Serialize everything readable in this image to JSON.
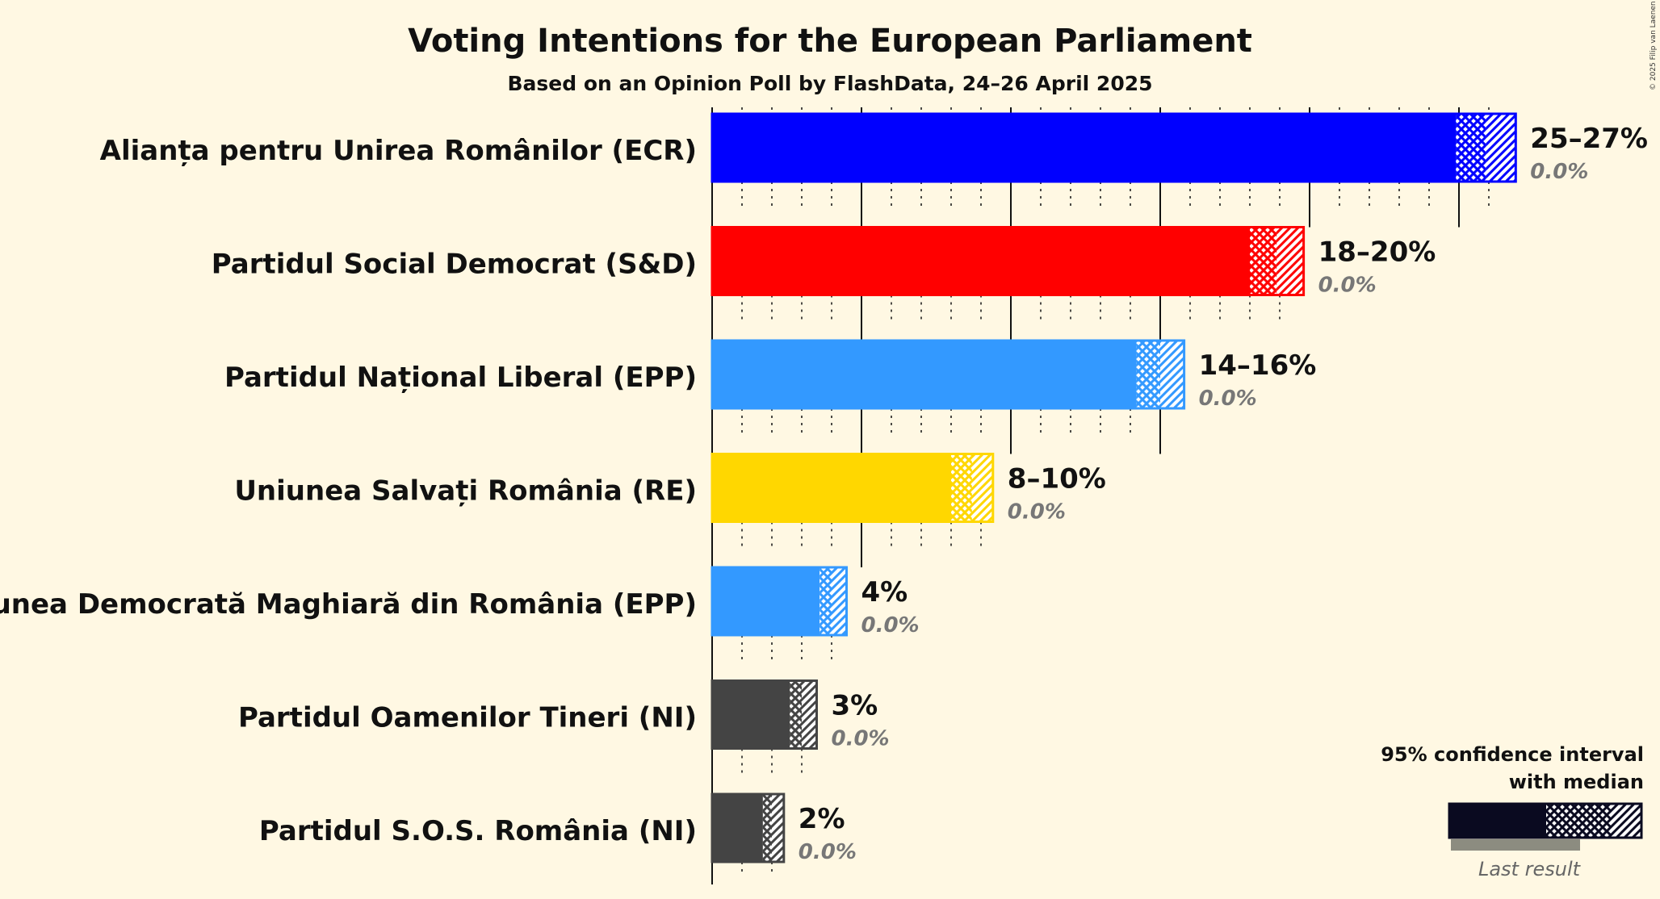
{
  "chart_data": {
    "type": "bar",
    "orientation": "horizontal",
    "title": "Voting Intentions for the European Parliament",
    "subtitle": "Based on an Opinion Poll by FlashData, 24–26 April 2025",
    "copyright": "© 2025 Filip van Laenen",
    "xlim": [
      0,
      28
    ],
    "grid": "dotted every 1%, solid every 5%",
    "categories": [
      "Alianța pentru Unirea Românilor (ECR)",
      "Partidul Social Democrat (S&D)",
      "Partidul Național Liberal (EPP)",
      "Uniunea Salvați România (RE)",
      "Uniunea Democrată Maghiară din România (EPP)",
      "Partidul Oamenilor Tineri (NI)",
      "Partidul S.O.S. România (NI)"
    ],
    "series": [
      {
        "name": "ci_low",
        "values": [
          24.9,
          18.0,
          14.2,
          8.0,
          3.6,
          2.6,
          1.7
        ]
      },
      {
        "name": "median",
        "values": [
          25.9,
          18.9,
          15.0,
          8.7,
          4.0,
          3.0,
          2.0
        ]
      },
      {
        "name": "ci_high",
        "values": [
          26.9,
          19.8,
          15.8,
          9.4,
          4.5,
          3.5,
          2.4
        ]
      },
      {
        "name": "last_result",
        "values": [
          0.0,
          0.0,
          0.0,
          0.0,
          0.0,
          0.0,
          0.0
        ]
      }
    ],
    "colors": [
      "#0000ff",
      "#ff0000",
      "#3399ff",
      "#ffd700",
      "#3399ff",
      "#444444",
      "#444444"
    ],
    "range_labels": [
      "25–27%",
      "18–20%",
      "14–16%",
      "8–10%",
      "4%",
      "3%",
      "2%"
    ],
    "last_result_labels": [
      "0.0%",
      "0.0%",
      "0.0%",
      "0.0%",
      "0.0%",
      "0.0%",
      "0.0%"
    ],
    "legend": {
      "position": "bottom-right",
      "line1": "95% confidence interval",
      "line2": "with median",
      "last_result": "Last result",
      "color": "#0a0a20",
      "last_color": "#8c8c80"
    }
  }
}
